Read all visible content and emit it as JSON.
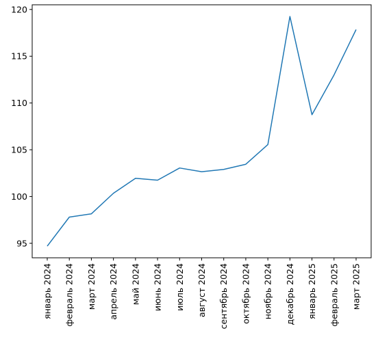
{
  "chart_data": {
    "type": "line",
    "title": "",
    "xlabel": "",
    "ylabel": "",
    "categories": [
      "январь 2024",
      "февраль 2024",
      "март 2024",
      "апрель 2024",
      "май 2024",
      "июнь 2024",
      "июль 2024",
      "август 2024",
      "сентябрь 2024",
      "октябрь 2024",
      "ноябрь 2024",
      "декабрь 2024",
      "январь 2025",
      "февраль 2025",
      "март 2025"
    ],
    "series": [
      {
        "values": [
          94.7,
          97.8,
          98.15,
          100.35,
          101.95,
          101.75,
          103.05,
          102.65,
          102.9,
          103.45,
          105.55,
          119.25,
          108.75,
          113.0,
          117.85
        ],
        "color": "#1f77b4"
      }
    ],
    "ylim": [
      93.45,
      120.5
    ],
    "yticks": [
      95,
      100,
      105,
      110,
      115,
      120
    ],
    "grid": false,
    "legend": "none"
  }
}
